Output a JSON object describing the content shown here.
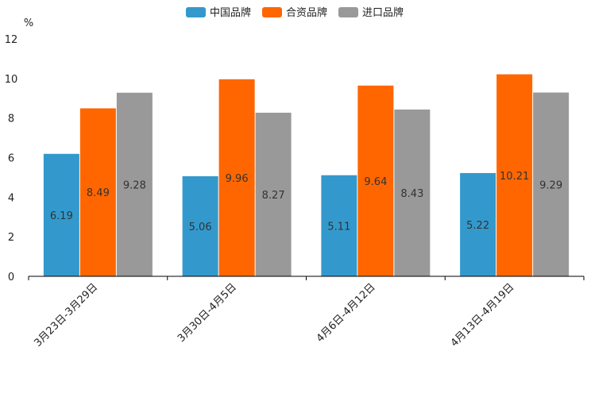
{
  "chart_data": {
    "type": "bar",
    "title": "",
    "ylabel": "%",
    "xlabel": "",
    "ylim": [
      0,
      12
    ],
    "yticks": [
      0,
      2,
      4,
      6,
      8,
      10,
      12
    ],
    "categories": [
      "3月23日-3月29日",
      "3月30日-4月5日",
      "4月6日-4月12日",
      "4月13日-4月19日"
    ],
    "series": [
      {
        "name": "中国品牌",
        "color": "#3399cc",
        "values": [
          6.19,
          5.06,
          5.11,
          5.22
        ],
        "labels": [
          "6.19",
          "5.06",
          "5.11",
          "5.22"
        ]
      },
      {
        "name": "合资品牌",
        "color": "#ff6600",
        "values": [
          8.49,
          9.96,
          9.64,
          10.21
        ],
        "labels": [
          "8.49",
          "9.96",
          "9.64",
          "10.21"
        ]
      },
      {
        "name": "进口品牌",
        "color": "#999999",
        "values": [
          9.28,
          8.27,
          8.43,
          9.29
        ],
        "labels": [
          "9.28",
          "8.27",
          "8.43",
          "9.29"
        ]
      }
    ],
    "legend": "top-center",
    "grid": false
  }
}
